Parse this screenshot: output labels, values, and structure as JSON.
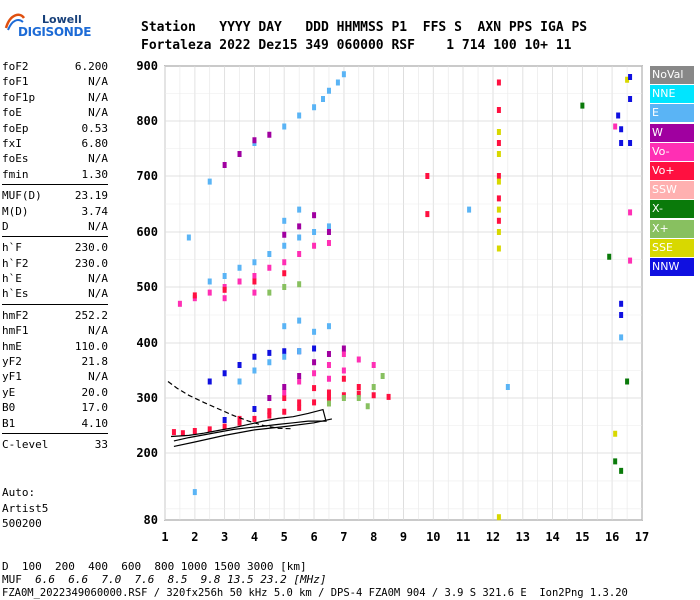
{
  "logo": {
    "line1": "Lowell",
    "line2": "DIGISONDE"
  },
  "header": {
    "labels_line": "Station   YYYY DAY   DDD HHMMSS P1  FFS S  AXN PPS IGA PS",
    "values_line": "Fortaleza 2022 Dez15 349 060000 RSF    1 714 100 10+ 11"
  },
  "params": [
    [
      {
        "name": "foF2",
        "value": "6.200"
      },
      {
        "name": "foF1",
        "value": "N/A"
      },
      {
        "name": "foF1p",
        "value": "N/A"
      },
      {
        "name": "foE",
        "value": "N/A"
      },
      {
        "name": "foEp",
        "value": "0.53"
      },
      {
        "name": "fxI",
        "value": "6.80"
      },
      {
        "name": "foEs",
        "value": "N/A"
      },
      {
        "name": "fmin",
        "value": "1.30"
      }
    ],
    [
      {
        "name": "MUF(D)",
        "value": "23.19"
      },
      {
        "name": "M(D)",
        "value": "3.74"
      },
      {
        "name": "D",
        "value": "N/A"
      }
    ],
    [
      {
        "name": "h`F",
        "value": "230.0"
      },
      {
        "name": "h`F2",
        "value": "230.0"
      },
      {
        "name": "h`E",
        "value": "N/A"
      },
      {
        "name": "h`Es",
        "value": "N/A"
      }
    ],
    [
      {
        "name": "hmF2",
        "value": "252.2"
      },
      {
        "name": "hmF1",
        "value": "N/A"
      },
      {
        "name": "hmE",
        "value": "110.0"
      },
      {
        "name": "yF2",
        "value": "21.8"
      },
      {
        "name": "yF1",
        "value": "N/A"
      },
      {
        "name": "yE",
        "value": "20.0"
      },
      {
        "name": "B0",
        "value": "17.0"
      },
      {
        "name": "B1",
        "value": "4.10"
      }
    ],
    [
      {
        "name": "C-level",
        "value": "33"
      }
    ]
  ],
  "autoscaling": {
    "line1": "Auto:",
    "line2": "Artist5",
    "line3": "500200"
  },
  "legend": [
    {
      "label": "NoVal",
      "color": "#888888"
    },
    {
      "label": "NNE",
      "color": "#00e5ff"
    },
    {
      "label": "E",
      "color": "#5ab4f5"
    },
    {
      "label": "W",
      "color": "#a000a0"
    },
    {
      "label": "Vo-",
      "color": "#ff2fb4"
    },
    {
      "label": "Vo+",
      "color": "#ff1040"
    },
    {
      "label": "SSW",
      "color": "#ffb0b0"
    },
    {
      "label": "X-",
      "color": "#0a7a0a"
    },
    {
      "label": "X+",
      "color": "#88c060"
    },
    {
      "label": "SSE",
      "color": "#d8d800"
    },
    {
      "label": "NNW",
      "color": "#1010e0"
    }
  ],
  "chart_data": {
    "type": "scatter",
    "xlim": [
      1,
      17
    ],
    "ylim": [
      80,
      900
    ],
    "x_ticks": [
      "1",
      "2",
      "3",
      "4",
      "5",
      "6",
      "7",
      "8",
      "9",
      "10",
      "11",
      "12",
      "13",
      "14",
      "15",
      "16",
      "17"
    ],
    "y_ticks": [
      "80",
      "200",
      "300",
      "400",
      "500",
      "600",
      "700",
      "800",
      "900"
    ],
    "y_tick_values": [
      80,
      200,
      300,
      400,
      500,
      600,
      700,
      800,
      900
    ],
    "grid": true,
    "clusters": [
      {
        "color": "#ff1040",
        "points": [
          [
            1.3,
            238
          ],
          [
            1.6,
            236
          ],
          [
            2,
            240
          ],
          [
            2.5,
            243
          ],
          [
            3,
            248
          ],
          [
            3.5,
            255
          ],
          [
            4,
            262
          ],
          [
            4.5,
            268
          ],
          [
            5,
            275
          ],
          [
            5.5,
            282
          ],
          [
            6,
            292
          ],
          [
            6.5,
            300
          ],
          [
            7,
            305
          ],
          [
            7.5,
            308
          ],
          [
            8,
            305
          ],
          [
            8.5,
            302
          ],
          [
            3.5,
            262
          ],
          [
            4.5,
            276
          ],
          [
            5.5,
            292
          ],
          [
            6.5,
            310
          ],
          [
            7.5,
            320
          ],
          [
            6,
            318
          ],
          [
            7,
            335
          ],
          [
            5,
            300
          ]
        ]
      },
      {
        "color": "#ff2fb4",
        "points": [
          [
            5,
            310
          ],
          [
            5.5,
            330
          ],
          [
            6,
            345
          ],
          [
            6.5,
            360
          ],
          [
            7,
            380
          ],
          [
            7.5,
            370
          ],
          [
            8,
            360
          ],
          [
            6.5,
            335
          ],
          [
            7,
            350
          ]
        ]
      },
      {
        "color": "#a000a0",
        "points": [
          [
            4.5,
            300
          ],
          [
            5,
            320
          ],
          [
            5.5,
            340
          ],
          [
            6,
            365
          ],
          [
            6.5,
            380
          ],
          [
            7,
            390
          ]
        ]
      },
      {
        "color": "#88c060",
        "points": [
          [
            7.5,
            300
          ],
          [
            8,
            320
          ],
          [
            8.3,
            340
          ],
          [
            7.8,
            285
          ],
          [
            6.5,
            290
          ],
          [
            7,
            300
          ]
        ]
      },
      {
        "color": "#1010e0",
        "points": [
          [
            2.5,
            330
          ],
          [
            3,
            345
          ],
          [
            3.5,
            360
          ],
          [
            4,
            375
          ],
          [
            4.5,
            382
          ],
          [
            5,
            385
          ],
          [
            5.5,
            385
          ],
          [
            3,
            260
          ],
          [
            4,
            280
          ],
          [
            6,
            390
          ]
        ]
      },
      {
        "color": "#5ab4f5",
        "points": [
          [
            3.5,
            330
          ],
          [
            4,
            350
          ],
          [
            4.5,
            365
          ],
          [
            5,
            375
          ],
          [
            5.5,
            385
          ],
          [
            6,
            420
          ],
          [
            6.5,
            430
          ],
          [
            5,
            430
          ],
          [
            5.5,
            440
          ]
        ]
      },
      {
        "color": "#ff2fb4",
        "points": [
          [
            1.5,
            470
          ],
          [
            2,
            480
          ],
          [
            2.5,
            490
          ],
          [
            3,
            500
          ],
          [
            3.5,
            510
          ],
          [
            4,
            520
          ],
          [
            4.5,
            535
          ],
          [
            5,
            545
          ],
          [
            5.5,
            560
          ],
          [
            6,
            575
          ],
          [
            6.5,
            580
          ],
          [
            3,
            480
          ],
          [
            4,
            490
          ]
        ]
      },
      {
        "color": "#5ab4f5",
        "points": [
          [
            2.5,
            510
          ],
          [
            3,
            520
          ],
          [
            3.5,
            535
          ],
          [
            4,
            545
          ],
          [
            4.5,
            560
          ],
          [
            5,
            575
          ],
          [
            5.5,
            590
          ],
          [
            6,
            600
          ],
          [
            6.5,
            610
          ],
          [
            5,
            620
          ],
          [
            5.5,
            640
          ]
        ]
      },
      {
        "color": "#ff1040",
        "points": [
          [
            2,
            485
          ],
          [
            3,
            495
          ],
          [
            4,
            510
          ],
          [
            5,
            525
          ]
        ]
      },
      {
        "color": "#88c060",
        "points": [
          [
            4.5,
            490
          ],
          [
            5,
            500
          ],
          [
            5.5,
            505
          ]
        ]
      },
      {
        "color": "#a000a0",
        "points": [
          [
            5,
            595
          ],
          [
            5.5,
            610
          ],
          [
            6,
            630
          ],
          [
            6.5,
            600
          ]
        ]
      },
      {
        "color": "#5ab4f5",
        "points": [
          [
            5,
            790
          ],
          [
            5.5,
            810
          ],
          [
            6,
            825
          ],
          [
            6.3,
            840
          ],
          [
            6.5,
            855
          ],
          [
            6.8,
            870
          ],
          [
            7,
            885
          ],
          [
            4,
            760
          ],
          [
            3.5,
            740
          ],
          [
            2.5,
            690
          ]
        ]
      },
      {
        "color": "#a000a0",
        "points": [
          [
            3,
            720
          ],
          [
            3.5,
            740
          ],
          [
            4,
            765
          ],
          [
            4.5,
            775
          ]
        ]
      },
      {
        "color": "#ff1040",
        "points": [
          [
            12.2,
            870
          ],
          [
            12.2,
            820
          ],
          [
            12.2,
            760
          ],
          [
            12.2,
            700
          ],
          [
            12.2,
            660
          ],
          [
            12.2,
            620
          ],
          [
            9.8,
            700
          ],
          [
            9.8,
            632
          ]
        ]
      },
      {
        "color": "#d8d800",
        "points": [
          [
            12.2,
            780
          ],
          [
            12.2,
            740
          ],
          [
            12.2,
            690
          ],
          [
            12.2,
            640
          ],
          [
            12.2,
            600
          ],
          [
            12.2,
            570
          ],
          [
            16.1,
            235
          ],
          [
            16.5,
            875
          ],
          [
            12.2,
            85
          ]
        ]
      },
      {
        "color": "#1010e0",
        "points": [
          [
            16.2,
            810
          ],
          [
            16.3,
            785
          ],
          [
            16.3,
            760
          ],
          [
            16.6,
            880
          ],
          [
            16.6,
            840
          ],
          [
            16.6,
            760
          ],
          [
            16.3,
            450
          ],
          [
            16.3,
            470
          ]
        ]
      },
      {
        "color": "#ff2fb4",
        "points": [
          [
            16.1,
            790
          ],
          [
            16.6,
            635
          ],
          [
            16.6,
            548
          ]
        ]
      },
      {
        "color": "#0a7a0a",
        "points": [
          [
            16.1,
            185
          ],
          [
            16.3,
            168
          ],
          [
            16.5,
            330
          ],
          [
            15.9,
            555
          ],
          [
            15,
            828
          ]
        ]
      },
      {
        "color": "#5ab4f5",
        "points": [
          [
            12.5,
            320
          ],
          [
            16.3,
            410
          ],
          [
            2,
            130
          ],
          [
            1.8,
            590
          ],
          [
            11.2,
            640
          ]
        ]
      }
    ]
  },
  "traces": [
    {
      "name": "profile-upper-dashed",
      "style": "dashed",
      "points": [
        [
          1.1,
          330
        ],
        [
          1.4,
          318
        ],
        [
          1.8,
          305
        ],
        [
          2.3,
          292
        ],
        [
          2.8,
          280
        ],
        [
          3.3,
          268
        ],
        [
          3.8,
          258
        ],
        [
          4.3,
          250
        ],
        [
          4.8,
          245
        ],
        [
          5.3,
          244
        ]
      ]
    },
    {
      "name": "profile-solid",
      "style": "solid",
      "points": [
        [
          1.2,
          230
        ],
        [
          1.8,
          232
        ],
        [
          2.3,
          236
        ],
        [
          2.8,
          241
        ],
        [
          3.3,
          246
        ],
        [
          3.8,
          252
        ],
        [
          4.3,
          258
        ],
        [
          4.8,
          263
        ],
        [
          5.3,
          266
        ],
        [
          5.8,
          272
        ],
        [
          6.3,
          279
        ],
        [
          6.4,
          258
        ],
        [
          5.8,
          258
        ],
        [
          5.3,
          255
        ],
        [
          4.8,
          252
        ],
        [
          4.3,
          249
        ],
        [
          3.8,
          246
        ],
        [
          3.3,
          243
        ],
        [
          2.8,
          238
        ],
        [
          2.3,
          233
        ],
        [
          1.8,
          228
        ],
        [
          1.3,
          222
        ]
      ]
    },
    {
      "name": "profile-lower",
      "style": "solid",
      "points": [
        [
          1.3,
          212
        ],
        [
          2,
          220
        ],
        [
          3,
          232
        ],
        [
          4,
          242
        ],
        [
          5,
          248
        ],
        [
          6,
          255
        ],
        [
          6.6,
          262
        ]
      ]
    }
  ],
  "footer": {
    "d_label": "D",
    "d_values": "  100  200  400  600  800 1000 1500 3000 [km]",
    "muf_label": "MUF",
    "muf_values": "  6.6  6.6  7.0  7.6  8.5  9.8 13.5 23.2 [MHz]",
    "file_line": "FZA0M_2022349060000.RSF / 320fx256h 50 kHz 5.0 km / DPS-4 FZA0M 904 / 3.9 S 321.6 E  Ion2Png 1.3.20"
  }
}
